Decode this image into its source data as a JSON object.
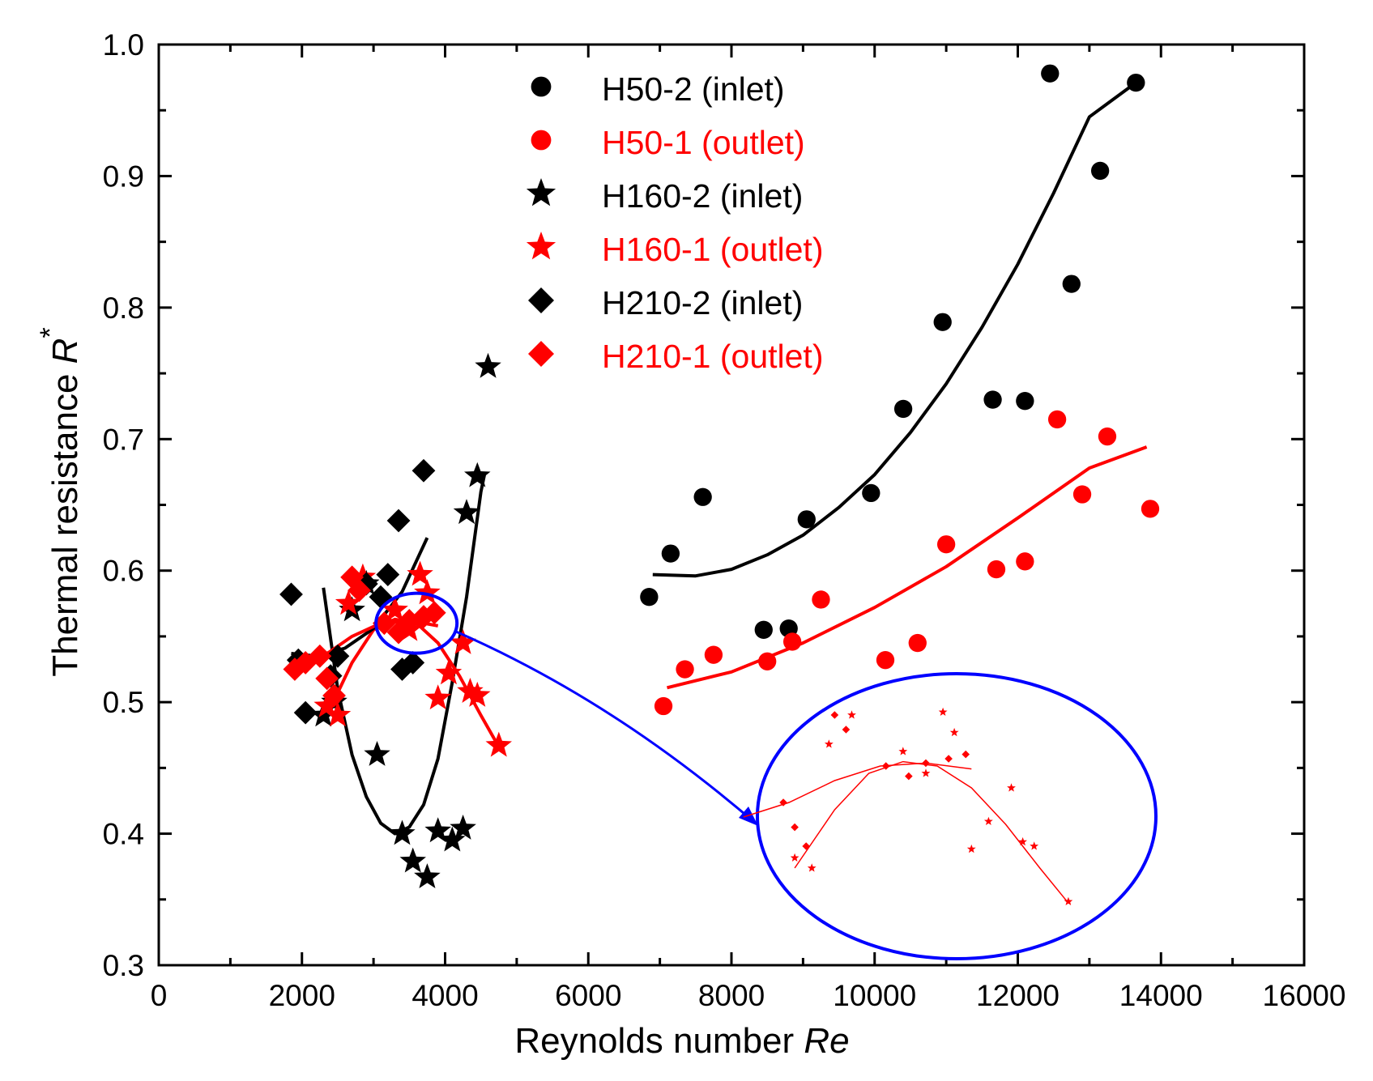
{
  "chart_data": {
    "type": "scatter",
    "xlabel": "Reynolds number ",
    "xlabel_italic": "Re",
    "ylabel": "Thermal resistance ",
    "ylabel_italic": "R",
    "ylabel_superscript": "*",
    "xlim": [
      0,
      16000
    ],
    "ylim": [
      0.3,
      1.0
    ],
    "xticks": [
      0,
      2000,
      4000,
      6000,
      8000,
      10000,
      12000,
      14000,
      16000
    ],
    "yticks": [
      0.3,
      0.4,
      0.5,
      0.6,
      0.7,
      0.8,
      0.9,
      1.0
    ],
    "xtick_labels": [
      "0",
      "2000",
      "4000",
      "6000",
      "8000",
      "10000",
      "12000",
      "14000",
      "16000"
    ],
    "ytick_labels": [
      "0.3",
      "0.4",
      "0.5",
      "0.6",
      "0.7",
      "0.8",
      "0.9",
      "1.0"
    ],
    "legend_position": "top-center",
    "colors": {
      "black": "#000000",
      "red": "#ff0000",
      "blue": "#0000ff"
    },
    "series": [
      {
        "name": "H50-2  (inlet)",
        "color": "#000000",
        "marker": "circle",
        "points": [
          [
            6850,
            0.58
          ],
          [
            7150,
            0.613
          ],
          [
            7600,
            0.656
          ],
          [
            8450,
            0.555
          ],
          [
            8800,
            0.556
          ],
          [
            9050,
            0.639
          ],
          [
            9950,
            0.659
          ],
          [
            10400,
            0.723
          ],
          [
            10950,
            0.789
          ],
          [
            11650,
            0.73
          ],
          [
            12100,
            0.729
          ],
          [
            12450,
            0.978
          ],
          [
            12750,
            0.818
          ],
          [
            13150,
            0.904
          ],
          [
            13650,
            0.971
          ]
        ],
        "fit": [
          [
            6900,
            0.597
          ],
          [
            7500,
            0.596
          ],
          [
            8000,
            0.601
          ],
          [
            8500,
            0.612
          ],
          [
            9000,
            0.627
          ],
          [
            9500,
            0.648
          ],
          [
            10000,
            0.673
          ],
          [
            10500,
            0.705
          ],
          [
            11000,
            0.742
          ],
          [
            11500,
            0.785
          ],
          [
            12000,
            0.833
          ],
          [
            12500,
            0.887
          ],
          [
            13000,
            0.945
          ],
          [
            13650,
            0.971
          ]
        ]
      },
      {
        "name": "H50-1 (outlet)",
        "color": "#ff0000",
        "marker": "circle",
        "points": [
          [
            7050,
            0.497
          ],
          [
            7350,
            0.525
          ],
          [
            7750,
            0.536
          ],
          [
            8500,
            0.531
          ],
          [
            8850,
            0.546
          ],
          [
            9250,
            0.578
          ],
          [
            10150,
            0.532
          ],
          [
            10600,
            0.545
          ],
          [
            11000,
            0.62
          ],
          [
            11700,
            0.601
          ],
          [
            12100,
            0.607
          ],
          [
            12550,
            0.715
          ],
          [
            12900,
            0.658
          ],
          [
            13250,
            0.702
          ],
          [
            13850,
            0.647
          ]
        ],
        "fit": [
          [
            7100,
            0.511
          ],
          [
            8000,
            0.523
          ],
          [
            9000,
            0.545
          ],
          [
            10000,
            0.572
          ],
          [
            11000,
            0.603
          ],
          [
            12000,
            0.64
          ],
          [
            13000,
            0.678
          ],
          [
            13800,
            0.694
          ]
        ]
      },
      {
        "name": "H160-2  (inlet)",
        "color": "#000000",
        "marker": "star",
        "points": [
          [
            2300,
            0.49
          ],
          [
            2450,
            0.5
          ],
          [
            2700,
            0.57
          ],
          [
            2900,
            0.59
          ],
          [
            3050,
            0.46
          ],
          [
            3400,
            0.4
          ],
          [
            3550,
            0.379
          ],
          [
            3750,
            0.367
          ],
          [
            3900,
            0.402
          ],
          [
            4100,
            0.395
          ],
          [
            4250,
            0.404
          ],
          [
            4300,
            0.644
          ],
          [
            4450,
            0.672
          ],
          [
            4600,
            0.755
          ]
        ],
        "fit": [
          [
            2300,
            0.587
          ],
          [
            2500,
            0.51
          ],
          [
            2700,
            0.46
          ],
          [
            2900,
            0.428
          ],
          [
            3100,
            0.408
          ],
          [
            3300,
            0.4
          ],
          [
            3500,
            0.405
          ],
          [
            3700,
            0.422
          ],
          [
            3900,
            0.457
          ],
          [
            4100,
            0.515
          ],
          [
            4300,
            0.58
          ],
          [
            4500,
            0.66
          ],
          [
            4550,
            0.673
          ]
        ]
      },
      {
        "name": "H160-1  (outlet)",
        "color": "#ff0000",
        "marker": "star",
        "points": [
          [
            2350,
            0.497
          ],
          [
            2500,
            0.49
          ],
          [
            2650,
            0.575
          ],
          [
            2850,
            0.595
          ],
          [
            3300,
            0.57
          ],
          [
            3500,
            0.555
          ],
          [
            3650,
            0.597
          ],
          [
            3750,
            0.583
          ],
          [
            3900,
            0.503
          ],
          [
            4050,
            0.522
          ],
          [
            4250,
            0.545
          ],
          [
            4350,
            0.508
          ],
          [
            4450,
            0.505
          ],
          [
            4750,
            0.467
          ]
        ],
        "fit": [
          [
            2350,
            0.49
          ],
          [
            2700,
            0.53
          ],
          [
            3000,
            0.555
          ],
          [
            3300,
            0.563
          ],
          [
            3600,
            0.56
          ],
          [
            3900,
            0.545
          ],
          [
            4200,
            0.52
          ],
          [
            4500,
            0.49
          ],
          [
            4750,
            0.466
          ]
        ]
      },
      {
        "name": "H210-2  (inlet)",
        "color": "#000000",
        "marker": "diamond",
        "points": [
          [
            1850,
            0.582
          ],
          [
            1950,
            0.532
          ],
          [
            2050,
            0.492
          ],
          [
            2400,
            0.52
          ],
          [
            2500,
            0.535
          ],
          [
            2900,
            0.59
          ],
          [
            3100,
            0.58
          ],
          [
            3200,
            0.597
          ],
          [
            3350,
            0.638
          ],
          [
            3400,
            0.525
          ],
          [
            3550,
            0.53
          ],
          [
            3700,
            0.676
          ]
        ],
        "fit": [
          [
            1850,
            0.537
          ],
          [
            2200,
            0.535
          ],
          [
            2600,
            0.541
          ],
          [
            3000,
            0.556
          ],
          [
            3400,
            0.584
          ],
          [
            3750,
            0.625
          ]
        ]
      },
      {
        "name": "H210-1  (outlet)",
        "color": "#ff0000",
        "marker": "diamond",
        "points": [
          [
            1900,
            0.525
          ],
          [
            2050,
            0.53
          ],
          [
            2250,
            0.535
          ],
          [
            2350,
            0.518
          ],
          [
            2450,
            0.505
          ],
          [
            2700,
            0.595
          ],
          [
            2800,
            0.585
          ],
          [
            3150,
            0.56
          ],
          [
            3350,
            0.553
          ],
          [
            3500,
            0.562
          ],
          [
            3700,
            0.565
          ],
          [
            3850,
            0.568
          ]
        ],
        "fit": [
          [
            1900,
            0.525
          ],
          [
            2300,
            0.535
          ],
          [
            2700,
            0.55
          ],
          [
            3100,
            0.56
          ],
          [
            3500,
            0.562
          ],
          [
            3900,
            0.558
          ]
        ]
      }
    ],
    "annotation": {
      "type": "magnifier",
      "source_center": [
        3600,
        0.56
      ],
      "note": "enlarged view of H160-1 and H210-1 data near Re 3000-4000"
    }
  }
}
